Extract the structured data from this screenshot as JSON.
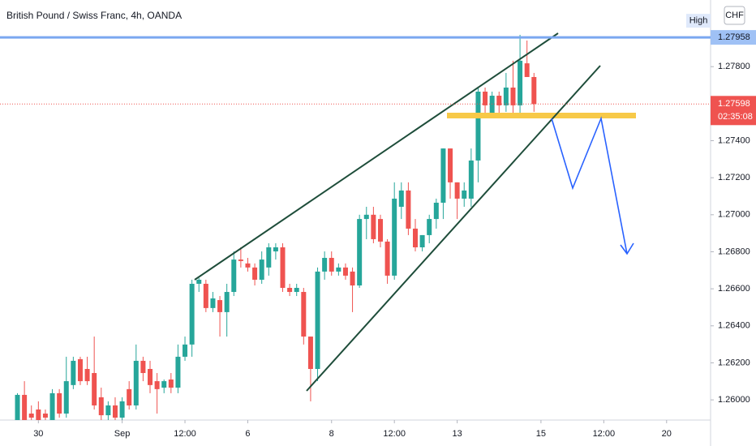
{
  "chart_data": {
    "type": "candlestick",
    "title": "British Pound / Swiss Franc, 4h, OANDA",
    "currency": "CHF",
    "open": [
      1.25891,
      1.26027,
      1.25926,
      1.25948,
      1.25926,
      1.25891,
      1.26036,
      1.25926,
      1.2608,
      1.2622,
      1.26167,
      1.26145,
      1.26014,
      1.25917,
      1.2597,
      1.25904,
      1.26058,
      1.2597,
      1.26211,
      1.26167,
      1.26101,
      1.26066,
      1.2611,
      1.26066,
      1.26233,
      1.26299,
      1.26627,
      1.26627,
      1.26496,
      1.26539,
      1.26474,
      1.26583,
      1.26758,
      1.26737,
      1.26715,
      1.26649,
      1.26715,
      1.26802,
      1.26824,
      1.26605,
      1.26583,
      1.26583,
      1.26342,
      1.26167,
      1.26693,
      1.26767,
      1.26693,
      1.26715,
      1.26693,
      1.26618,
      1.26977,
      1.27,
      1.26977,
      1.26855,
      1.26671,
      1.27043,
      1.27131,
      1.26925,
      1.26824,
      1.2689,
      1.26977,
      1.27065,
      1.27358,
      1.27175,
      1.27087,
      1.27087,
      1.27293,
      1.27665,
      1.27534,
      1.27643,
      1.27591,
      1.27687,
      1.27591,
      1.27818,
      1.27744
    ],
    "high": [
      1.26036,
      1.26101,
      1.2597,
      1.25992,
      1.25948,
      1.26058,
      1.26058,
      1.26233,
      1.26233,
      1.26233,
      1.26233,
      1.26342,
      1.26066,
      1.25992,
      1.26014,
      1.26014,
      1.26101,
      1.26299,
      1.26233,
      1.26211,
      1.26145,
      1.2611,
      1.26145,
      1.26299,
      1.26342,
      1.26649,
      1.26658,
      1.26649,
      1.26583,
      1.26561,
      1.26627,
      1.26802,
      1.26824,
      1.26767,
      1.26737,
      1.26802,
      1.26846,
      1.26846,
      1.26846,
      1.26627,
      1.26627,
      1.26605,
      1.26342,
      1.26715,
      1.26802,
      1.26802,
      1.26737,
      1.26737,
      1.26715,
      1.27,
      1.27043,
      1.27043,
      1.27,
      1.26868,
      1.27175,
      1.27175,
      1.27175,
      1.26977,
      1.2689,
      1.27,
      1.27087,
      1.27358,
      1.27358,
      1.27175,
      1.27175,
      1.27358,
      1.27687,
      1.27687,
      1.27665,
      1.27665,
      1.27766,
      1.27832,
      1.27972,
      1.27941,
      1.27766
    ],
    "low": [
      1.25891,
      1.25891,
      1.25891,
      1.25891,
      1.25891,
      1.25891,
      1.25904,
      1.25904,
      1.26058,
      1.2608,
      1.2608,
      1.25948,
      1.25891,
      1.25891,
      1.25891,
      1.25891,
      1.25948,
      1.25948,
      1.26101,
      1.26036,
      1.25926,
      1.26036,
      1.26036,
      1.26036,
      1.26211,
      1.26233,
      1.26583,
      1.26474,
      1.26474,
      1.26342,
      1.26342,
      1.26561,
      1.26715,
      1.26693,
      1.26618,
      1.26627,
      1.26671,
      1.26758,
      1.26583,
      1.26561,
      1.26561,
      1.26299,
      1.25992,
      1.26101,
      1.26649,
      1.26671,
      1.26671,
      1.26649,
      1.26474,
      1.26605,
      1.26868,
      1.26846,
      1.26824,
      1.26627,
      1.26649,
      1.26977,
      1.2689,
      1.26802,
      1.26802,
      1.26846,
      1.26925,
      1.26977,
      1.27087,
      1.26977,
      1.27043,
      1.27043,
      1.27175,
      1.27534,
      1.27534,
      1.27534,
      1.27556,
      1.27534,
      1.27534,
      1.27744,
      1.27556
    ],
    "close": [
      1.26027,
      1.25891,
      1.25904,
      1.25891,
      1.25904,
      1.26036,
      1.25926,
      1.26101,
      1.26211,
      1.26101,
      1.26101,
      1.2597,
      1.25917,
      1.2597,
      1.25904,
      1.25992,
      1.2597,
      1.26211,
      1.26145,
      1.2608,
      1.26058,
      1.26101,
      1.26066,
      1.26233,
      1.26299,
      1.26627,
      1.26649,
      1.26496,
      1.26548,
      1.26474,
      1.26583,
      1.26758,
      1.2675,
      1.26715,
      1.26649,
      1.26758,
      1.26824,
      1.26824,
      1.26605,
      1.26583,
      1.26605,
      1.26342,
      1.26167,
      1.26693,
      1.26767,
      1.26693,
      1.26715,
      1.26671,
      1.26618,
      1.26977,
      1.27,
      1.26868,
      1.26855,
      1.26671,
      1.27087,
      1.27131,
      1.26925,
      1.26824,
      1.2689,
      1.26977,
      1.27065,
      1.27358,
      1.27175,
      1.27087,
      1.27131,
      1.27293,
      1.27665,
      1.27591,
      1.27643,
      1.27591,
      1.27687,
      1.27591,
      1.27832,
      1.27744,
      1.27598
    ],
    "up_color": "#26a69a",
    "down_color": "#ef5350",
    "ylim": [
      1.25891,
      1.2816
    ],
    "yticks": [
      {
        "value": 1.26,
        "label": "1.26000"
      },
      {
        "value": 1.262,
        "label": "1.26200"
      },
      {
        "value": 1.264,
        "label": "1.26400"
      },
      {
        "value": 1.266,
        "label": "1.26600"
      },
      {
        "value": 1.268,
        "label": "1.26800"
      },
      {
        "value": 1.27,
        "label": "1.27000"
      },
      {
        "value": 1.272,
        "label": "1.27200"
      },
      {
        "value": 1.274,
        "label": "1.27400"
      },
      {
        "value": 1.278,
        "label": "1.27800"
      }
    ],
    "xlim": [
      -2.5,
      99.3
    ],
    "xticks": [
      {
        "value": 3,
        "label": "30"
      },
      {
        "value": 15,
        "label": "Sep"
      },
      {
        "value": 24,
        "label": "12:00"
      },
      {
        "value": 33,
        "label": "6"
      },
      {
        "value": 45,
        "label": "8"
      },
      {
        "value": 54,
        "label": "12:00"
      },
      {
        "value": 63,
        "label": "13"
      },
      {
        "value": 75,
        "label": "15"
      },
      {
        "value": 84,
        "label": "12:00"
      },
      {
        "value": 93,
        "label": "20"
      }
    ],
    "high_line": {
      "label": "High",
      "value": 1.27958
    },
    "current_price": 1.27598,
    "countdown": "02:35:08",
    "grid": false
  }
}
